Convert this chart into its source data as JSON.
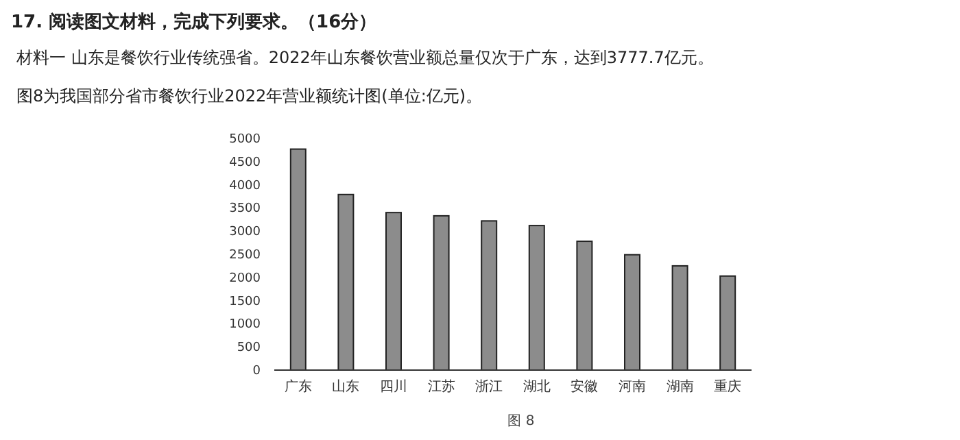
{
  "chart_data": {
    "type": "bar",
    "title": "17. 阅读图文材料，完成下列要求。（16分）",
    "annotations": [
      "材料一 山东是餐饮行业传统强省。2022年山东餐饮营业额总量仅次于广东，达到3777.7亿元。",
      "图8为我国部分省市餐饮行业2022年营业额统计图(单位:亿元)。",
      "图 8"
    ],
    "categories": [
      "广东",
      "山东",
      "四川",
      "江苏",
      "浙江",
      "湖北",
      "安徽",
      "河南",
      "湖南",
      "重庆"
    ],
    "values": [
      4770,
      3790,
      3400,
      3330,
      3220,
      3120,
      2780,
      2490,
      2250,
      2030
    ],
    "color": "#8c8c8c",
    "ylim": [
      0,
      5000
    ],
    "yticks": [
      0,
      500,
      1000,
      1500,
      2000,
      2500,
      3000,
      3500,
      4000,
      4500,
      5000
    ],
    "grid": false
  }
}
